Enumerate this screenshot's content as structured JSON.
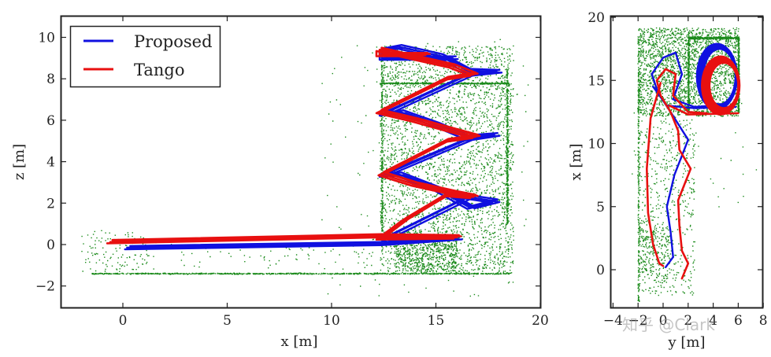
{
  "colors": {
    "proposed": "#1010e0",
    "tango": "#e81010",
    "points": "#1a8a1a",
    "axis": "#222222"
  },
  "legend": {
    "items": [
      {
        "label": "Proposed",
        "color": "#1010e0"
      },
      {
        "label": "Tango",
        "color": "#e81010"
      }
    ]
  },
  "watermark": "知乎 @Clark",
  "chart_data": [
    {
      "type": "line",
      "title": "",
      "xlabel": "x [m]",
      "ylabel": "z [m]",
      "xlim": [
        -3,
        20
      ],
      "ylim": [
        -3,
        11
      ],
      "xticks": [
        "0",
        "5",
        "10",
        "15",
        "20"
      ],
      "yticks": [
        "−2",
        "0",
        "2",
        "4",
        "6",
        "8",
        "10"
      ],
      "grid": false,
      "legend_position": "upper left",
      "series": [
        {
          "name": "Proposed",
          "color": "#1010e0",
          "x": [
            0.2,
            12.5,
            17.3,
            12.5,
            17.8,
            12.5,
            17.8,
            12.5,
            17.8,
            13.2
          ],
          "y": [
            -0.2,
            0.1,
            0.25,
            3.3,
            2.1,
            6.2,
            5.3,
            9.3,
            8.3,
            9.6
          ]
        },
        {
          "name": "Tango",
          "color": "#e81010",
          "x": [
            -0.6,
            12.3,
            16.0,
            12.3,
            16.8,
            12.3,
            17.0,
            12.3,
            16.8,
            12.3
          ],
          "y": [
            0.1,
            0.4,
            0.3,
            3.4,
            2.3,
            6.4,
            5.2,
            9.4,
            8.2,
            9.4
          ]
        },
        {
          "name": "Map points",
          "type": "scatter",
          "color": "#1a8a1a",
          "note": "dense point cloud x 12-19, z -1.5-10; floor line at z=-1.4 from x=-1.5 to 18.5; sparse points near x=0"
        }
      ]
    },
    {
      "type": "line",
      "title": "",
      "xlabel": "y [m]",
      "ylabel": "x [m]",
      "xlim": [
        -4,
        8
      ],
      "ylim": [
        -3,
        20
      ],
      "xticks": [
        "−4",
        "−2",
        "0",
        "2",
        "4",
        "6",
        "8"
      ],
      "yticks": [
        "0",
        "5",
        "10",
        "15",
        "20"
      ],
      "grid": false,
      "series": [
        {
          "name": "Proposed",
          "color": "#1010e0",
          "x": [
            0.2,
            0.8,
            0.5,
            2.0,
            0.5,
            -1.0,
            0.5,
            1.0,
            5.5,
            3.5,
            4.0,
            6.0,
            4.2
          ],
          "y": [
            0.2,
            1.0,
            5.0,
            10.3,
            13.0,
            15.5,
            17.0,
            13.5,
            12.8,
            12.8,
            17.5,
            17.0,
            13.0
          ]
        },
        {
          "name": "Tango",
          "color": "#e81010",
          "x": [
            1.5,
            2.0,
            1.3,
            2.3,
            1.0,
            -0.5,
            0.8,
            1.5,
            5.5,
            3.5,
            4.5,
            6.0,
            4.2,
            -0.3,
            -0.8,
            0.0
          ],
          "y": [
            -0.7,
            0.5,
            5.5,
            9.0,
            12.5,
            15.0,
            16.0,
            12.5,
            12.3,
            12.5,
            17.0,
            16.5,
            12.5,
            14.8,
            3.5,
            0.5
          ]
        },
        {
          "name": "Map points",
          "type": "scatter",
          "color": "#1a8a1a",
          "note": "dense rectangle y -2..6, x 12..19; sparse column y -2..2, x -2.5..12"
        }
      ]
    }
  ]
}
